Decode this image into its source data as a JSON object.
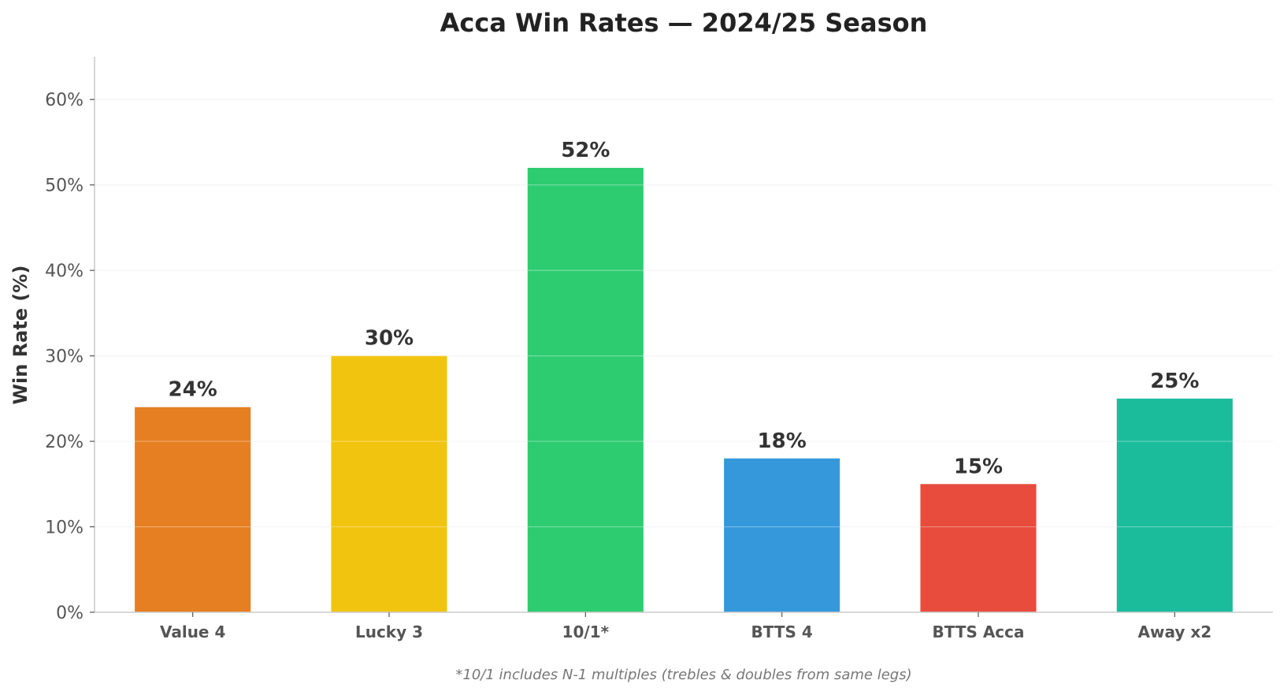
{
  "chart_data": {
    "type": "bar",
    "title": "Acca Win Rates — 2024/25 Season",
    "xlabel": "",
    "ylabel": "Win Rate (%)",
    "categories": [
      "Value 4",
      "Lucky 3",
      "10/1*",
      "BTTS 4",
      "BTTS Acca",
      "Away x2"
    ],
    "values": [
      24,
      30,
      52,
      18,
      15,
      25
    ],
    "data_labels": [
      "24%",
      "30%",
      "52%",
      "18%",
      "15%",
      "25%"
    ],
    "colors": [
      "#e67e22",
      "#f1c40f",
      "#2ecc71",
      "#3498db",
      "#e74c3c",
      "#1abc9c"
    ],
    "ylim": [
      0,
      65
    ],
    "yticks": [
      0,
      10,
      20,
      30,
      40,
      50,
      60
    ],
    "ytick_labels": [
      "0%",
      "10%",
      "20%",
      "30%",
      "40%",
      "50%",
      "60%"
    ],
    "grid": true,
    "footnote": "*10/1 includes N-1 multiples (trebles & doubles from same legs)"
  }
}
